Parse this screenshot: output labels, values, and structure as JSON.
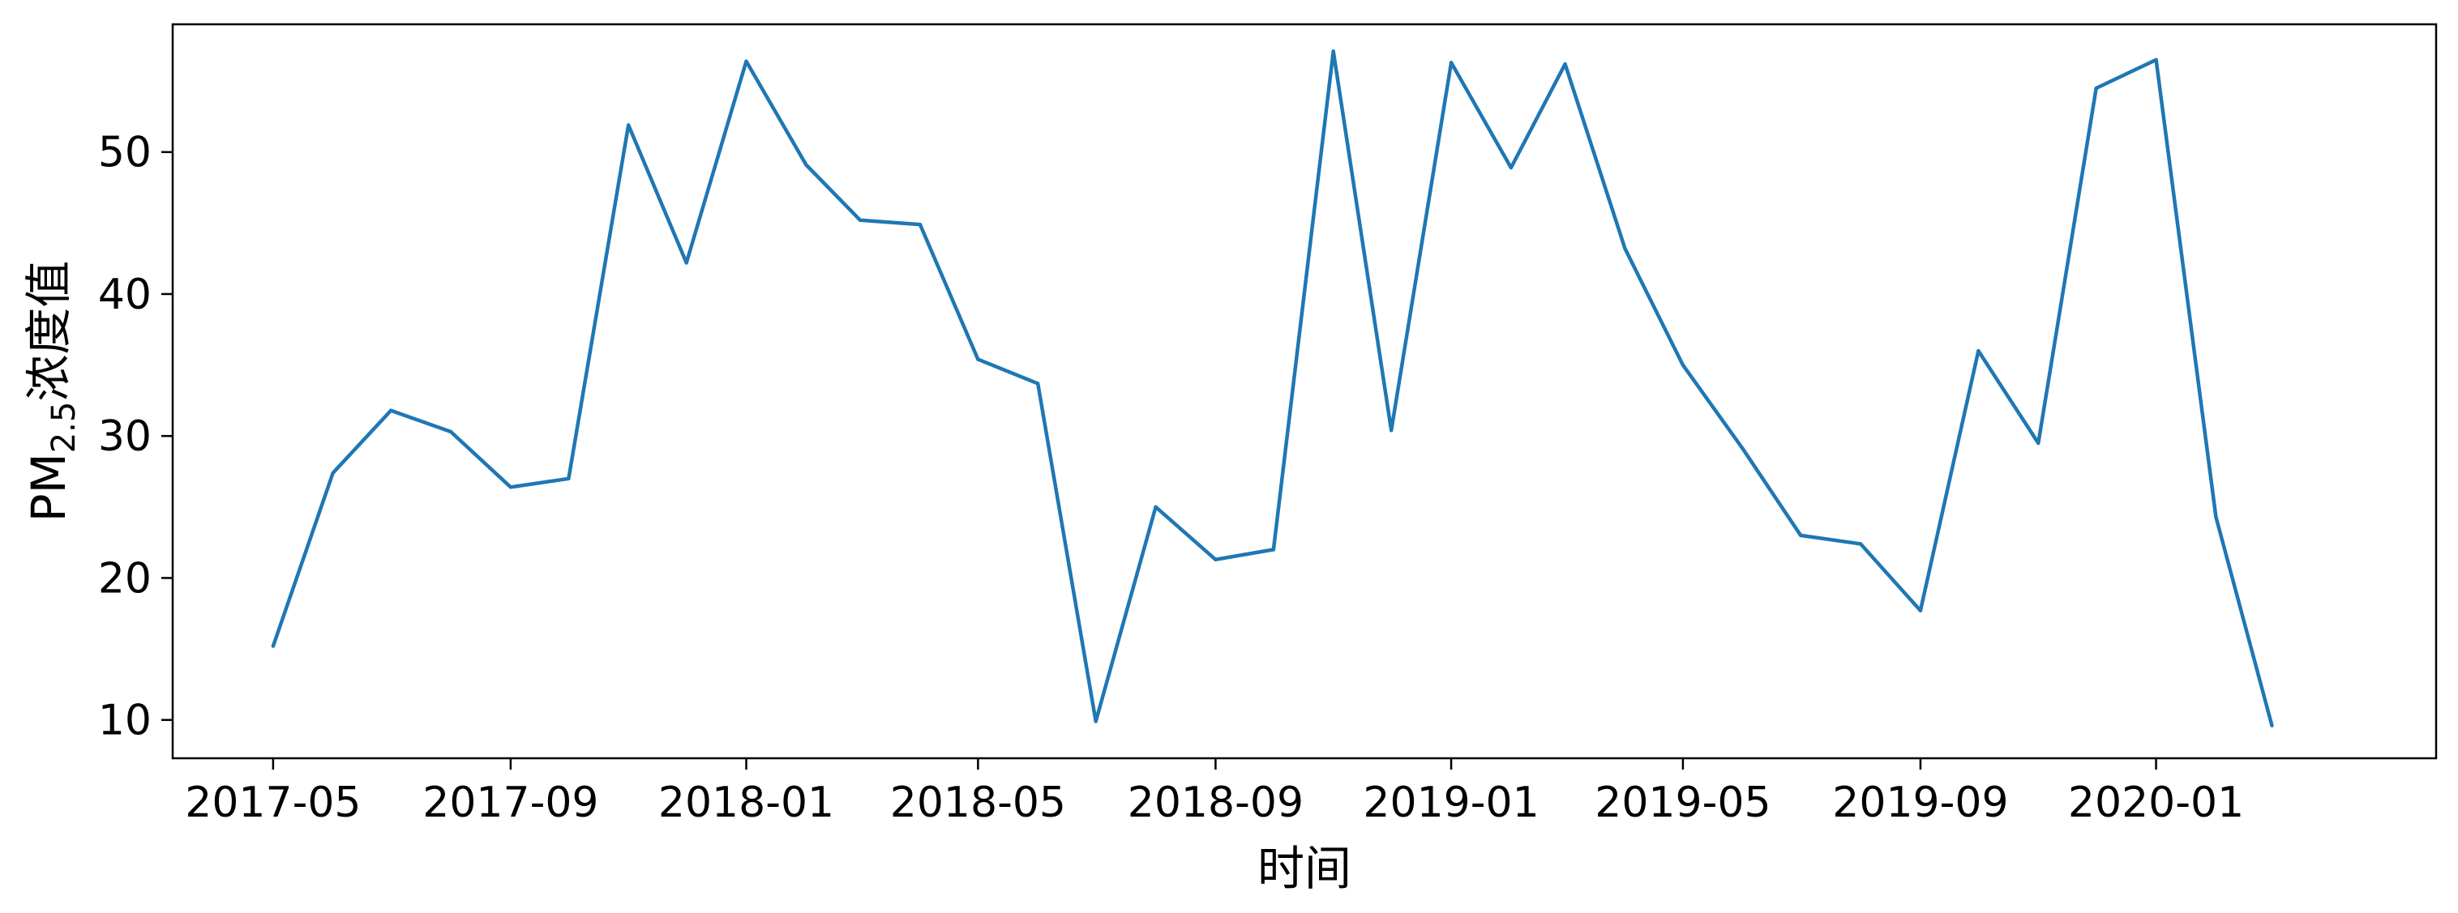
{
  "chart_data": {
    "type": "line",
    "title": "",
    "xlabel": "时间",
    "ylabel": {
      "main": "PM",
      "subscript": "2.5",
      "suffix": "浓度值"
    },
    "xlim": [
      "2017-03-10",
      "2020-05-25"
    ],
    "ylim": [
      7.3,
      59.0
    ],
    "yticks": [
      10,
      20,
      30,
      40,
      50
    ],
    "xticks": [
      {
        "date": "2017-05-01",
        "label": "2017-05"
      },
      {
        "date": "2017-09-01",
        "label": "2017-09"
      },
      {
        "date": "2018-01-01",
        "label": "2018-01"
      },
      {
        "date": "2018-05-01",
        "label": "2018-05"
      },
      {
        "date": "2018-09-01",
        "label": "2018-09"
      },
      {
        "date": "2019-01-01",
        "label": "2019-01"
      },
      {
        "date": "2019-05-01",
        "label": "2019-05"
      },
      {
        "date": "2019-09-01",
        "label": "2019-09"
      },
      {
        "date": "2020-01-01",
        "label": "2020-01"
      }
    ],
    "grid": false,
    "series": [
      {
        "color": "#1f77b4",
        "x": [
          "2017-05-01",
          "2017-06-01",
          "2017-07-01",
          "2017-08-01",
          "2017-09-01",
          "2017-10-01",
          "2017-11-01",
          "2017-12-01",
          "2018-01-01",
          "2018-02-01",
          "2018-03-01",
          "2018-04-01",
          "2018-05-01",
          "2018-06-01",
          "2018-07-01",
          "2018-08-01",
          "2018-09-01",
          "2018-10-01",
          "2018-11-01",
          "2018-12-01",
          "2019-01-01",
          "2019-02-01",
          "2019-03-01",
          "2019-04-01",
          "2019-05-01",
          "2019-06-01",
          "2019-07-01",
          "2019-08-01",
          "2019-09-01",
          "2019-10-01",
          "2019-11-01",
          "2019-12-01",
          "2020-01-01",
          "2020-02-01",
          "2020-03-01"
        ],
        "values": [
          15.2,
          27.4,
          31.8,
          30.3,
          26.4,
          27.0,
          51.9,
          42.2,
          56.4,
          49.1,
          45.2,
          44.9,
          35.4,
          33.7,
          9.9,
          25.0,
          21.3,
          22.0,
          57.1,
          30.4,
          56.3,
          48.9,
          56.2,
          43.2,
          35.0,
          29.1,
          23.0,
          22.4,
          17.7,
          36.0,
          29.5,
          54.5,
          56.5,
          24.3,
          9.6
        ]
      }
    ]
  }
}
